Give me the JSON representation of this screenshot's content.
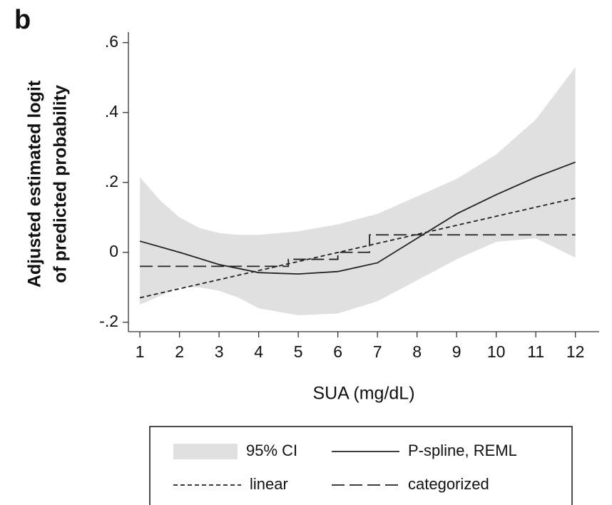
{
  "chart_data": {
    "type": "line",
    "panel_label": "b",
    "y_label": [
      "Adjusted estimated logit",
      "of predicted probability"
    ],
    "x_label": "SUA (mg/dL)",
    "xlim": [
      0.71,
      12.6
    ],
    "ylim": [
      -0.227,
      0.63
    ],
    "xticks": [
      1,
      2,
      3,
      4,
      5,
      6,
      7,
      8,
      9,
      10,
      11,
      12
    ],
    "yticks": [
      {
        "value": 0.6,
        "label": ".6"
      },
      {
        "value": 0.4,
        "label": ".4"
      },
      {
        "value": 0.2,
        "label": ".2"
      },
      0,
      {
        "value": -0.2,
        "label": "-.2"
      }
    ],
    "series": [
      {
        "name": "95% CI",
        "style": "band",
        "color": "#e0e0e0",
        "x": [
          1,
          1.5,
          2,
          2.5,
          3,
          3.5,
          4,
          5,
          6,
          7,
          8,
          9,
          10,
          11,
          12
        ],
        "upper": [
          0.215,
          0.15,
          0.1,
          0.07,
          0.055,
          0.05,
          0.05,
          0.06,
          0.08,
          0.11,
          0.16,
          0.21,
          0.28,
          0.38,
          0.53
        ],
        "lower": [
          -0.15,
          -0.125,
          -0.1,
          -0.1,
          -0.11,
          -0.13,
          -0.16,
          -0.18,
          -0.175,
          -0.14,
          -0.08,
          -0.02,
          0.03,
          0.04,
          -0.015
        ]
      },
      {
        "name": "P-spline, REML",
        "style": "solid",
        "color": "#222222",
        "x": [
          1,
          2,
          3,
          4,
          5,
          6,
          7,
          8,
          9,
          10,
          11,
          12
        ],
        "values": [
          0.032,
          0.0,
          -0.035,
          -0.058,
          -0.062,
          -0.055,
          -0.03,
          0.04,
          0.11,
          0.165,
          0.215,
          0.258
        ]
      },
      {
        "name": "linear",
        "style": "short-dash",
        "color": "#222222",
        "x": [
          1,
          12
        ],
        "values": [
          -0.13,
          0.155
        ]
      },
      {
        "name": "categorized",
        "style": "long-dash",
        "color": "#222222",
        "x": [
          1,
          4.75,
          4.75,
          6.0,
          6.0,
          6.8,
          6.8,
          12
        ],
        "values": [
          -0.04,
          -0.04,
          -0.02,
          -0.02,
          0.0,
          0.0,
          0.05,
          0.05
        ]
      }
    ]
  }
}
